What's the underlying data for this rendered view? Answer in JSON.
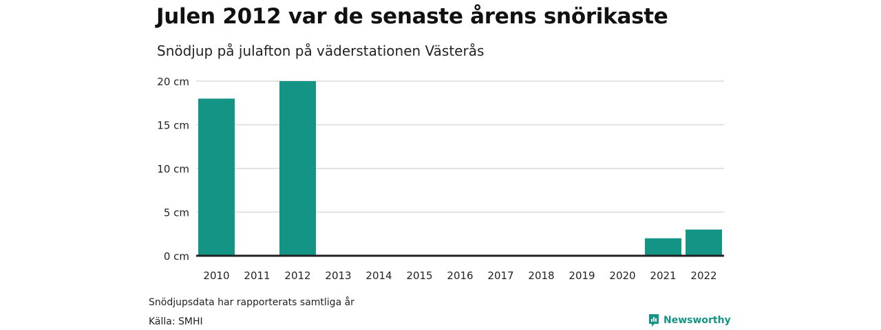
{
  "header": {
    "title": "Julen 2012 var de senaste årens snörikaste",
    "subtitle": "Snödjup på julafton på väderstationen Västerås"
  },
  "footer": {
    "note": "Snödjupsdata har rapporterats samtliga år",
    "source": "Källa: SMHI",
    "brand": "Newsworthy",
    "brand_icon": "newsworthy-logo-icon"
  },
  "colors": {
    "bar": "#139485",
    "grid": "#d9d9d9",
    "baseline": "#222222",
    "brand": "#139485"
  },
  "chart_data": {
    "type": "bar",
    "title": "Julen 2012 var de senaste årens snörikaste",
    "subtitle": "Snödjup på julafton på väderstationen Västerås",
    "categories": [
      "2010",
      "2011",
      "2012",
      "2013",
      "2014",
      "2015",
      "2016",
      "2017",
      "2018",
      "2019",
      "2020",
      "2021",
      "2022"
    ],
    "values": [
      18,
      0,
      20,
      0,
      0,
      0,
      0,
      0,
      0,
      0,
      0,
      2,
      3
    ],
    "unit": "cm",
    "ylim": [
      0,
      20
    ],
    "yticks": [
      0,
      5,
      10,
      15,
      20
    ],
    "ytick_labels": [
      "0 cm",
      "5 cm",
      "10 cm",
      "15 cm",
      "20 cm"
    ],
    "grid": true,
    "legend": false
  }
}
